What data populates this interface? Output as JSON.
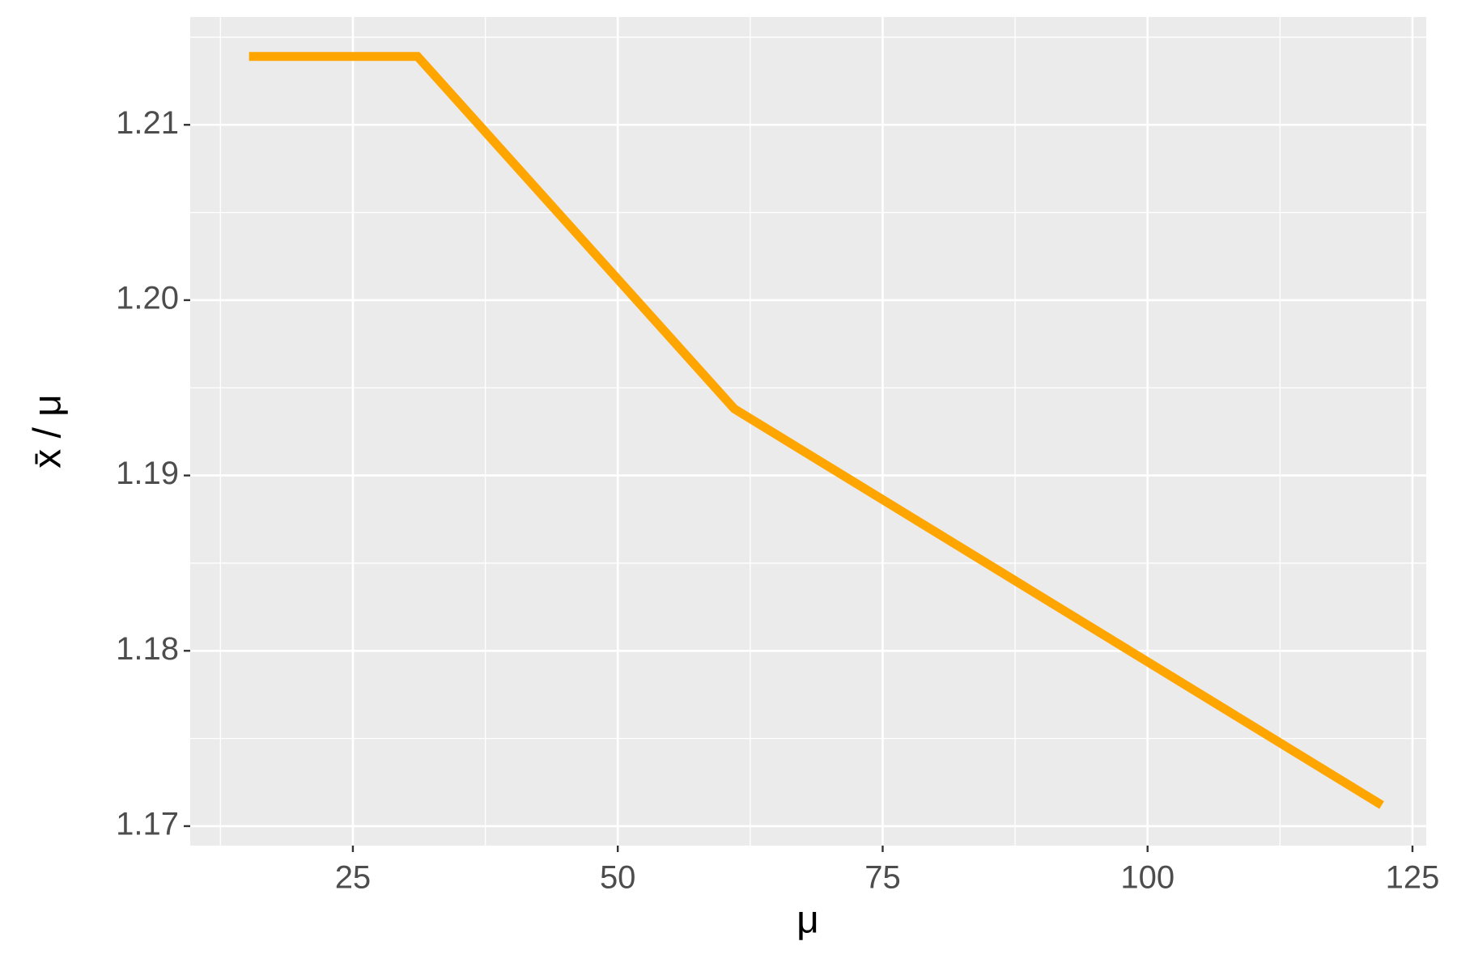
{
  "chart_data": {
    "type": "line",
    "x_label": "μ",
    "y_label": "x̄ / μ",
    "x": [
      15.2,
      31.1,
      61.0,
      122.1
    ],
    "series": [
      {
        "color": "#FFA500",
        "values": [
          1.2139,
          1.2139,
          1.1938,
          1.1712
        ]
      }
    ],
    "xlim": [
      9.65,
      126.3
    ],
    "xticks": [
      25,
      50,
      75,
      100,
      125
    ],
    "ylim": [
      1.16889,
      1.21615
    ],
    "yticks": [
      1.17,
      1.18,
      1.19,
      {
        "value": 1.2,
        "label": "1.20"
      },
      1.21
    ],
    "grid": true
  }
}
